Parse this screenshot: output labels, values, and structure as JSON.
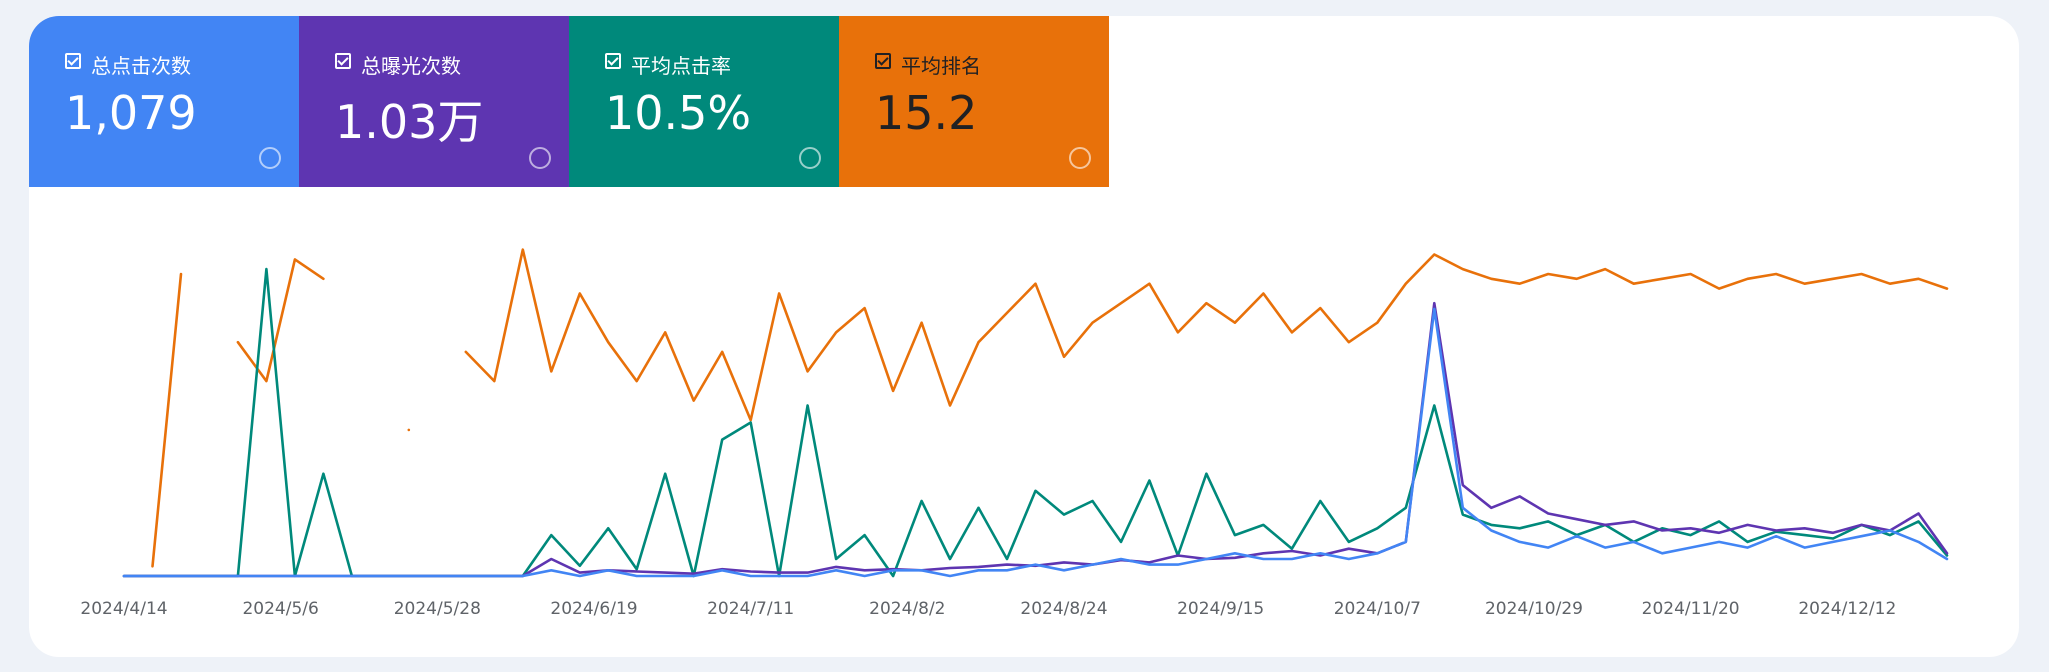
{
  "chart_data": {
    "type": "line",
    "series": [
      {
        "name": "总点击次数",
        "summary": "1,079",
        "color": "#4285f4",
        "ylim": [
          0,
          60
        ],
        "values": [
          0,
          0,
          0,
          0,
          0,
          0,
          0,
          0,
          0,
          0,
          0,
          0,
          0,
          0,
          0,
          1,
          0,
          1,
          0,
          0,
          0,
          1,
          0,
          0,
          0,
          1,
          0,
          1,
          1,
          0,
          1,
          1,
          2,
          1,
          2,
          3,
          2,
          2,
          3,
          4,
          3,
          3,
          4,
          3,
          4,
          6,
          47,
          12,
          8,
          6,
          5,
          7,
          5,
          6,
          4,
          5,
          6,
          5,
          7,
          5,
          6,
          7,
          8,
          6,
          3
        ]
      },
      {
        "name": "总曝光次数",
        "summary": "1.03万",
        "color": "#5e35b1",
        "ylim": [
          0,
          300
        ],
        "values": [
          0,
          0,
          0,
          0,
          0,
          0,
          0,
          0,
          0,
          0,
          0,
          0,
          0,
          0,
          0,
          15,
          3,
          5,
          4,
          3,
          2,
          6,
          4,
          3,
          3,
          8,
          5,
          6,
          5,
          7,
          8,
          10,
          9,
          12,
          10,
          14,
          12,
          18,
          15,
          16,
          20,
          22,
          18,
          24,
          20,
          30,
          240,
          80,
          60,
          70,
          55,
          50,
          45,
          48,
          40,
          42,
          38,
          45,
          40,
          42,
          38,
          45,
          40,
          55,
          20
        ]
      },
      {
        "name": "平均点击率",
        "summary": "10.5%",
        "color": "#00897b",
        "ylim": [
          0,
          100
        ],
        "values": [
          0,
          0,
          0,
          0,
          0,
          90,
          0,
          30,
          0,
          0,
          0,
          0,
          0,
          0,
          0,
          12,
          3,
          14,
          2,
          30,
          0,
          40,
          45,
          0,
          50,
          5,
          12,
          0,
          22,
          5,
          20,
          5,
          25,
          18,
          22,
          10,
          28,
          6,
          30,
          12,
          15,
          8,
          22,
          10,
          14,
          20,
          50,
          18,
          15,
          14,
          16,
          12,
          15,
          10,
          14,
          12,
          16,
          10,
          13,
          12,
          11,
          15,
          12,
          16,
          6
        ]
      },
      {
        "name": "平均排名",
        "summary": "15.2",
        "color": "#e8710a",
        "ylim": [
          70,
          0
        ],
        "values": [
          null,
          68,
          8,
          null,
          22,
          30,
          5,
          9,
          null,
          null,
          40,
          null,
          24,
          30,
          3,
          28,
          12,
          22,
          30,
          20,
          34,
          24,
          38,
          12,
          28,
          20,
          15,
          32,
          18,
          35,
          22,
          16,
          10,
          25,
          18,
          14,
          10,
          20,
          14,
          18,
          12,
          20,
          15,
          22,
          18,
          10,
          4,
          7,
          9,
          10,
          8,
          9,
          7,
          10,
          9,
          8,
          11,
          9,
          8,
          10,
          9,
          8,
          10,
          9,
          11
        ]
      }
    ],
    "x": [
      0,
      4,
      8,
      12,
      16,
      20,
      24,
      28,
      32,
      36,
      40,
      44,
      48,
      52,
      56,
      60,
      64,
      68,
      72,
      76,
      80,
      84,
      88,
      92,
      96,
      100,
      104,
      108,
      112,
      116,
      120,
      124,
      128,
      132,
      136,
      140,
      144,
      148,
      152,
      156,
      160,
      164,
      168,
      172,
      176,
      180,
      184,
      188,
      192,
      196,
      200,
      204,
      208,
      212,
      216,
      220,
      224,
      228,
      232,
      236,
      240,
      244,
      248,
      252,
      256
    ],
    "xlim": [
      0,
      256
    ],
    "xticks": [
      {
        "value": 0,
        "label": "2024/4/14"
      },
      {
        "value": 22,
        "label": "2024/5/6"
      },
      {
        "value": 44,
        "label": "2024/5/28"
      },
      {
        "value": 66,
        "label": "2024/6/19"
      },
      {
        "value": 88,
        "label": "2024/7/11"
      },
      {
        "value": 110,
        "label": "2024/8/2"
      },
      {
        "value": 132,
        "label": "2024/8/24"
      },
      {
        "value": 154,
        "label": "2024/9/15"
      },
      {
        "value": 176,
        "label": "2024/10/7"
      },
      {
        "value": 198,
        "label": "2024/10/29"
      },
      {
        "value": 220,
        "label": "2024/11/20"
      },
      {
        "value": 242,
        "label": "2024/12/12"
      }
    ]
  }
}
